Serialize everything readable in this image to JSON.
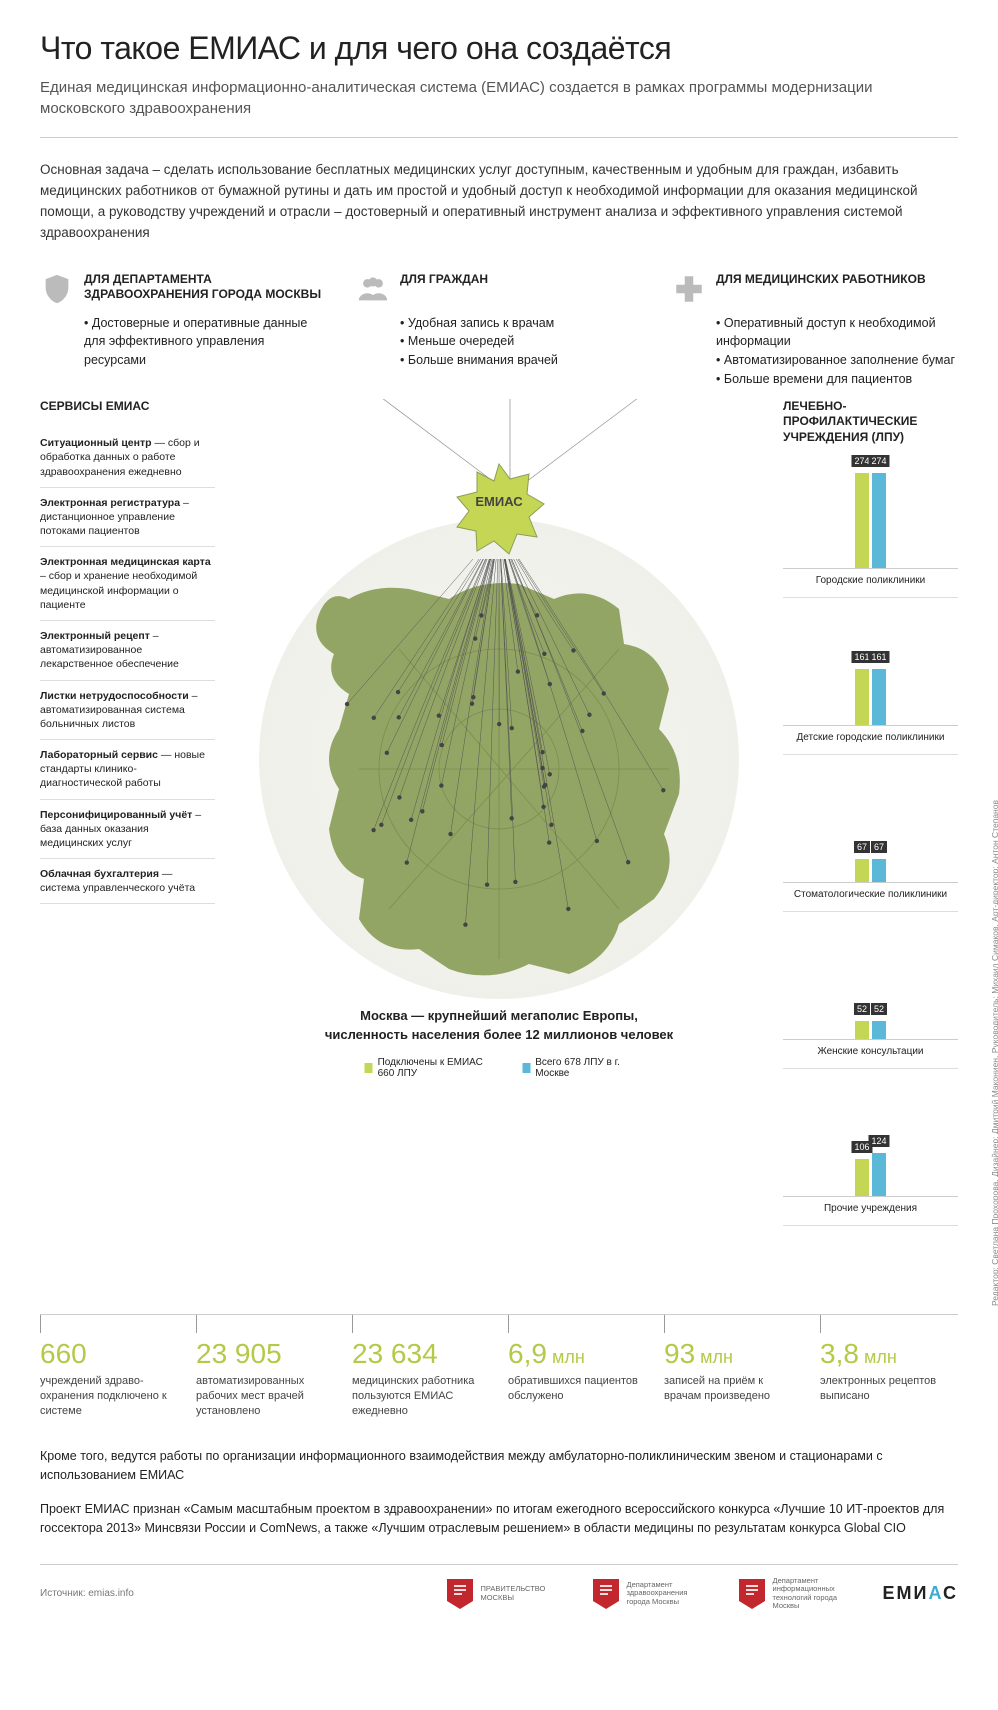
{
  "colors": {
    "olive": "#8b9e58",
    "olive_light": "#b5c948",
    "lime": "#c4d654",
    "blue": "#5bb8d8",
    "text": "#222222",
    "muted": "#666666",
    "icon_gray": "#bbbbbb",
    "red_logo": "#c1272d",
    "bg": "#ffffff"
  },
  "title": "Что такое ЕМИАС и для чего она создаётся",
  "subtitle": "Единая медицинская информационно-аналитическая система (ЕМИАС) создается в рамках программы модернизации московского здравоохранения",
  "intro": "Основная задача – сделать использование бесплатных медицинских услуг доступным, качественным и удобным для граждан, избавить медицинских работников от бумажной рутины и дать им простой и удобный доступ к необходимой информации для оказания медицинской помощи, а руководству учреждений и отрасли – достоверный и оперативный инструмент анализа и эффективного управления системой здравоохранения",
  "star_label": "ЕМИАС",
  "audiences": [
    {
      "icon": "shield",
      "title": "ДЛЯ ДЕПАРТАМЕНТА ЗДРАВООХРАНЕНИЯ ГОРОДА МОСКВЫ",
      "bullets": [
        "Достоверные и оперативные данные для эффективного управления ресурсами"
      ]
    },
    {
      "icon": "people",
      "title": "ДЛЯ ГРАЖДАН",
      "bullets": [
        "Удобная запись к врачам",
        "Меньше очередей",
        "Больше внимания врачей"
      ]
    },
    {
      "icon": "cross",
      "title": "ДЛЯ МЕДИЦИНСКИХ РАБОТНИКОВ",
      "bullets": [
        "Оперативный доступ к необходимой информации",
        "Автоматизированное заполнение бумаг",
        "Больше времени для пациентов"
      ]
    }
  ],
  "services_title": "СЕРВИСЫ ЕМИАС",
  "services": [
    {
      "b": "Ситуационный центр",
      "t": " — сбор и обработка данных о работе здраво­охранения ежедневно"
    },
    {
      "b": "Электронная регистратура",
      "t": " – дистанционное управление потоками пациентов"
    },
    {
      "b": "Электронная медицинская карта",
      "t": " – сбор и хранение необходимой медицин­ской информации о пациенте"
    },
    {
      "b": "Электронный рецепт",
      "t": " – автоматизированное лекарственное обеспечение"
    },
    {
      "b": "Листки нетрудо­способности",
      "t": " – автоматизированная система больничных листов"
    },
    {
      "b": "Лабораторный сервис",
      "t": " — новые стандарты клинико-диагностической работы"
    },
    {
      "b": "Персонифици­рованный учёт",
      "t": " – база данных оказания медицинских услуг"
    },
    {
      "b": "Облачная бухгалтерия",
      "t": " — система управлен­ческого учёта"
    }
  ],
  "lpu_title": "ЛЕЧЕБНО-ПРОФИЛАКТИЧЕСКИЕ УЧРЕЖДЕНИЯ (ЛПУ)",
  "lpu_max": 274,
  "lpu": [
    {
      "label": "Городские поликлиники",
      "a": 274,
      "b": 274
    },
    {
      "label": "Детские городские поликлиники",
      "a": 161,
      "b": 161
    },
    {
      "label": "Стоматологические поликлиники",
      "a": 67,
      "b": 67
    },
    {
      "label": "Женские консультации",
      "a": 52,
      "b": 52
    },
    {
      "label": "Прочие учреждения",
      "a": 106,
      "b": 124
    }
  ],
  "map_caption_1": "Москва — крупнейший мегаполис Европы,",
  "map_caption_2": "численность населения более 12 миллионов человек",
  "legend_a": "Подключены к ЕМИАС 660 ЛПУ",
  "legend_b": "Всего 678 ЛПУ в г. Москве",
  "stats": [
    {
      "num": "660",
      "unit": "",
      "text": "учреждений здраво­охранения подключено к системе"
    },
    {
      "num": "23 905",
      "unit": "",
      "text": "автомати­зированных рабочих мест врачей установлено"
    },
    {
      "num": "23 634",
      "unit": "",
      "text": "медицинских работника пользуются ЕМИАС ежедневно"
    },
    {
      "num": "6,9",
      "unit": " млн",
      "text": "обратившихся пациентов обслужено"
    },
    {
      "num": "93",
      "unit": " млн",
      "text": "записей на приём к врачам произведено"
    },
    {
      "num": "3,8",
      "unit": " млн",
      "text": "электронных рецептов выписано"
    }
  ],
  "outro_1": "Кроме того, ведутся работы по организации информационного взаимодействия между амбулаторно-поликлиническим звеном и стационарами с использованием ЕМИАС",
  "outro_2": "Проект ЕМИАС признан «Самым масштабным проектом в здравоохранении» по итогам ежегодного всероссийского конкурса «Лучшие 10 ИТ-проектов для госсектора 2013» Минсвязи России и ComNews, а также «Лучшим отраслевым решением» в области медицины по результатам конкурса Global CIO",
  "source": "Источник: emias.info",
  "logos": [
    {
      "color": "#c1272d",
      "text": "ПРАВИТЕЛЬСТВО МОСКВЫ"
    },
    {
      "color": "#c1272d",
      "text": "Департамент здравоохранения города Москвы"
    },
    {
      "color": "#c1272d",
      "text": "Департамент информационных технологий города Москвы"
    }
  ],
  "emias_brand": "ЕМИАС",
  "credits": "Редактор: Светлана Прохорова. Дизайнер: Дмитрий Макониен. Руководитель: Михаил Симаков. Арт-директор: Антон Степанов"
}
